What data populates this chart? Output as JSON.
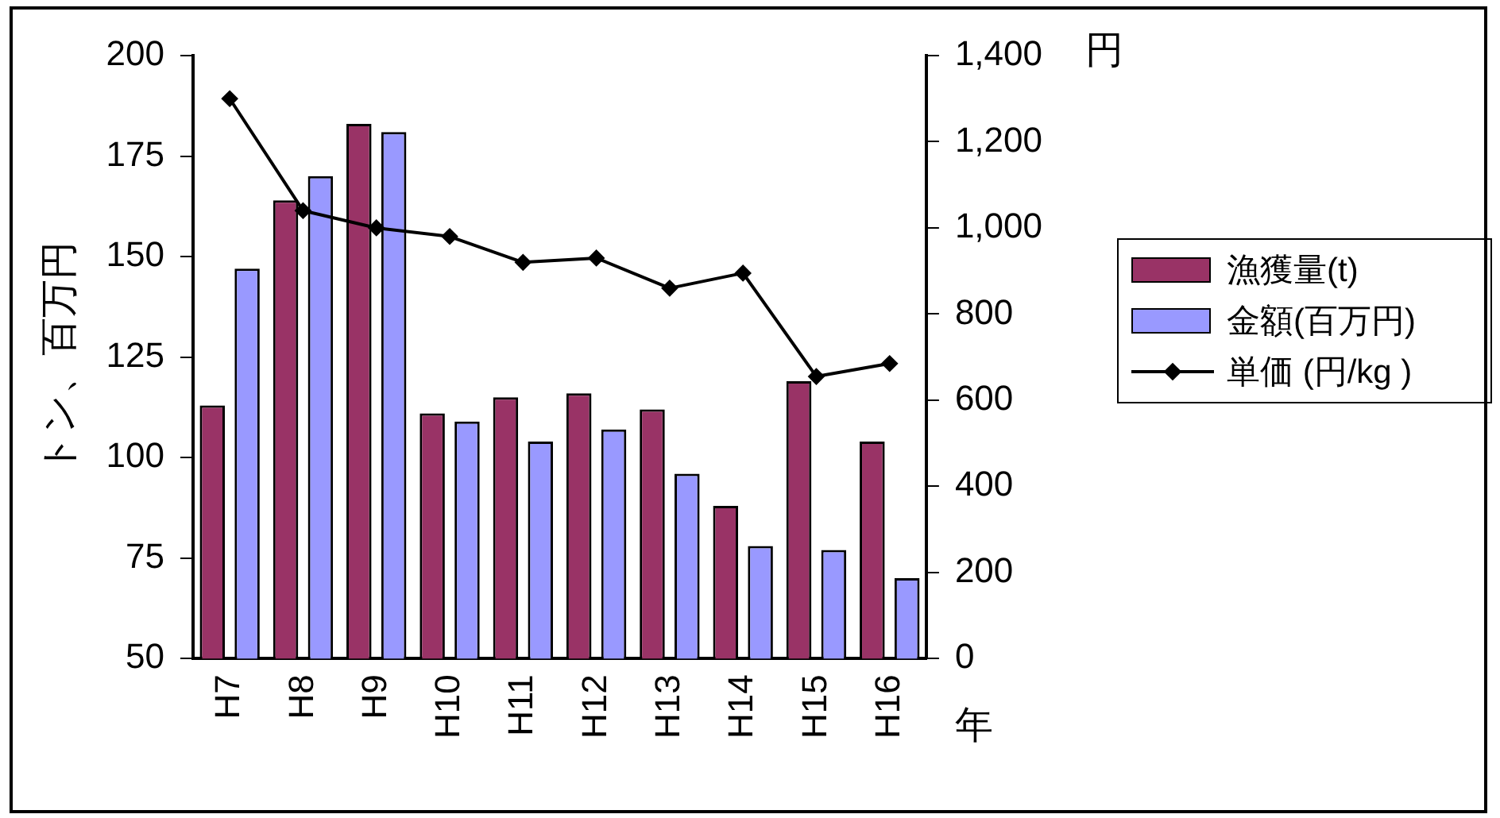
{
  "chart_data": {
    "type": "bar",
    "ylabel": "トン、百万円",
    "y2label": "円",
    "xlabel": "年",
    "categories": [
      "H7",
      "H8",
      "H9",
      "H10",
      "H11",
      "H12",
      "H13",
      "H14",
      "H15",
      "H16"
    ],
    "series": [
      {
        "name": "漁獲量(t)",
        "color": "#993366",
        "values": [
          113,
          164,
          183,
          111,
          115,
          116,
          112,
          88,
          119,
          104
        ]
      },
      {
        "name": "金額(百万円)",
        "color": "#9999ff",
        "values": [
          147,
          170,
          181,
          109,
          104,
          107,
          96,
          78,
          77,
          70
        ]
      },
      {
        "name": "単価 (円/kg )",
        "type": "line",
        "axis": "y2",
        "color": "#000000",
        "values": [
          1300,
          1040,
          1000,
          980,
          920,
          930,
          860,
          895,
          655,
          685
        ]
      }
    ],
    "ylim": [
      50,
      200
    ],
    "yticks": [
      50,
      75,
      100,
      125,
      150,
      175,
      200
    ],
    "y2lim": [
      0,
      1400
    ],
    "y2ticks": [
      {
        "value": 0,
        "label": "0"
      },
      {
        "value": 200,
        "label": "200"
      },
      {
        "value": 400,
        "label": "400"
      },
      {
        "value": 600,
        "label": "600"
      },
      {
        "value": 800,
        "label": "800"
      },
      {
        "value": 1000,
        "label": "1,000"
      },
      {
        "value": 1200,
        "label": "1,200"
      },
      {
        "value": 1400,
        "label": "1,400"
      }
    ],
    "grid": false,
    "legend": "right",
    "marker": "diamond"
  }
}
